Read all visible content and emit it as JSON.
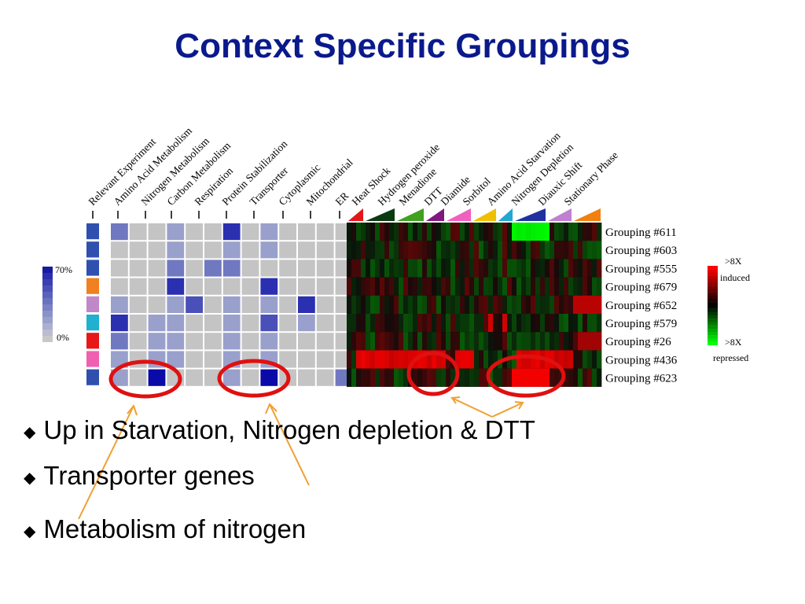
{
  "title": "Context Specific Groupings",
  "column_labels_left": [
    "Relevant Experiment",
    "Amino Acid Metabolism",
    "Nitrogen Metabolism",
    "Carbon Metabolism",
    "Respiration",
    "Protein Stabilization",
    "Transporter",
    "Cytoplasmic",
    "Mitochondrial",
    "ER"
  ],
  "column_labels_right": [
    "Heat Shock",
    "Hydrogen peroxide",
    "Menadione",
    "DTT",
    "Diamide",
    "Sorbitol",
    "Amino Acid Starvation",
    "Nitrogen Depletion",
    "Diauxic Shift",
    "Stationary Phase"
  ],
  "groupings": [
    "Grouping #611",
    "Grouping #603",
    "Grouping #555",
    "Grouping #679",
    "Grouping #652",
    "Grouping #579",
    "Grouping #26",
    "Grouping #436",
    "Grouping #623"
  ],
  "scale_left": {
    "top": "70%",
    "bottom": "0%"
  },
  "scale_right": {
    "top_line1": ">8X",
    "top_line2": "induced",
    "bottom_line1": ">8X",
    "bottom_line2": "repressed"
  },
  "bullets": [
    "Up in Starvation, Nitrogen depletion & DTT",
    "Transporter genes",
    "Metabolism of nitrogen"
  ],
  "colors": {
    "title": "#0a1a8c",
    "annotation": "#f0a030",
    "circle": "#e01010",
    "cell_empty": "#c0c0c0",
    "cell_dark": "#0a0aa8"
  }
}
